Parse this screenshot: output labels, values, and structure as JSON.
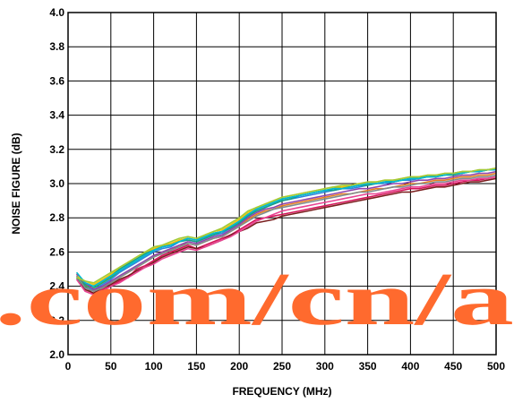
{
  "chart_data": {
    "type": "line",
    "title": "",
    "xlabel": "FREQUENCY (MHz)",
    "ylabel": "NOISE FIGURE (dB)",
    "xlim": [
      0,
      500
    ],
    "ylim": [
      2.0,
      4.0
    ],
    "grid": true,
    "x_ticks": [
      "0",
      "50",
      "100",
      "150",
      "200",
      "250",
      "300",
      "350",
      "400",
      "450",
      "500"
    ],
    "y_ticks": [
      "2.0",
      "2.2",
      "2.4",
      "2.6",
      "2.8",
      "3.0",
      "3.2",
      "3.4",
      "3.6",
      "3.8",
      "4.0"
    ],
    "x": [
      10,
      20,
      30,
      40,
      50,
      60,
      70,
      80,
      90,
      100,
      110,
      120,
      130,
      140,
      150,
      160,
      170,
      180,
      190,
      200,
      210,
      220,
      230,
      240,
      250,
      260,
      270,
      280,
      290,
      300,
      310,
      320,
      330,
      340,
      350,
      360,
      370,
      380,
      390,
      400,
      410,
      420,
      430,
      440,
      450,
      460,
      470,
      480,
      490,
      500
    ],
    "series": [
      {
        "color": "#d4145a",
        "values": [
          2.47,
          2.4,
          2.35,
          2.38,
          2.4,
          2.43,
          2.45,
          2.5,
          2.52,
          2.55,
          2.58,
          2.6,
          2.62,
          2.64,
          2.62,
          2.64,
          2.66,
          2.68,
          2.7,
          2.73,
          2.76,
          2.79,
          2.8,
          2.81,
          2.82,
          2.83,
          2.84,
          2.85,
          2.86,
          2.87,
          2.88,
          2.89,
          2.9,
          2.91,
          2.92,
          2.93,
          2.94,
          2.95,
          2.96,
          2.97,
          2.97,
          2.98,
          2.99,
          2.99,
          3.0,
          3.01,
          3.02,
          3.02,
          3.03,
          3.04
        ]
      },
      {
        "color": "#7b1f1f",
        "values": [
          2.45,
          2.38,
          2.36,
          2.39,
          2.41,
          2.44,
          2.46,
          2.49,
          2.51,
          2.54,
          2.57,
          2.59,
          2.61,
          2.63,
          2.62,
          2.63,
          2.65,
          2.67,
          2.7,
          2.72,
          2.74,
          2.77,
          2.78,
          2.79,
          2.81,
          2.82,
          2.83,
          2.84,
          2.85,
          2.86,
          2.87,
          2.88,
          2.89,
          2.9,
          2.91,
          2.92,
          2.93,
          2.94,
          2.95,
          2.95,
          2.96,
          2.97,
          2.98,
          2.98,
          2.99,
          3.0,
          3.01,
          3.01,
          3.02,
          3.03
        ]
      },
      {
        "color": "#e67e22",
        "values": [
          2.48,
          2.41,
          2.37,
          2.4,
          2.42,
          2.45,
          2.48,
          2.51,
          2.54,
          2.57,
          2.6,
          2.61,
          2.64,
          2.65,
          2.64,
          2.66,
          2.68,
          2.69,
          2.72,
          2.75,
          2.79,
          2.82,
          2.84,
          2.85,
          2.87,
          2.88,
          2.89,
          2.9,
          2.91,
          2.92,
          2.93,
          2.94,
          2.94,
          2.95,
          2.96,
          2.97,
          2.97,
          2.98,
          2.99,
          3.0,
          3.0,
          3.01,
          3.02,
          3.02,
          3.03,
          3.04,
          3.04,
          3.05,
          3.05,
          3.06
        ]
      },
      {
        "color": "#2e86de",
        "values": [
          2.46,
          2.39,
          2.38,
          2.41,
          2.44,
          2.48,
          2.51,
          2.54,
          2.57,
          2.6,
          2.62,
          2.63,
          2.66,
          2.67,
          2.66,
          2.68,
          2.7,
          2.71,
          2.74,
          2.77,
          2.81,
          2.84,
          2.86,
          2.88,
          2.9,
          2.91,
          2.92,
          2.93,
          2.94,
          2.95,
          2.96,
          2.97,
          2.97,
          2.98,
          2.99,
          3.0,
          3.0,
          3.01,
          3.02,
          3.02,
          3.03,
          3.04,
          3.04,
          3.05,
          3.06,
          3.06,
          3.07,
          3.07,
          3.08,
          3.08
        ]
      },
      {
        "color": "#27ae60",
        "values": [
          2.44,
          2.4,
          2.39,
          2.42,
          2.45,
          2.49,
          2.52,
          2.55,
          2.58,
          2.61,
          2.63,
          2.64,
          2.67,
          2.68,
          2.67,
          2.69,
          2.71,
          2.72,
          2.75,
          2.78,
          2.82,
          2.85,
          2.87,
          2.89,
          2.91,
          2.92,
          2.93,
          2.94,
          2.95,
          2.96,
          2.97,
          2.98,
          2.98,
          2.99,
          3.0,
          3.0,
          3.01,
          3.02,
          3.02,
          3.03,
          3.04,
          3.04,
          3.05,
          3.05,
          3.06,
          3.07,
          3.07,
          3.08,
          3.08,
          3.09
        ]
      },
      {
        "color": "#16a085",
        "values": [
          2.45,
          2.41,
          2.4,
          2.43,
          2.46,
          2.5,
          2.53,
          2.56,
          2.59,
          2.62,
          2.63,
          2.65,
          2.66,
          2.67,
          2.66,
          2.68,
          2.7,
          2.72,
          2.74,
          2.77,
          2.81,
          2.84,
          2.86,
          2.88,
          2.9,
          2.91,
          2.93,
          2.94,
          2.95,
          2.96,
          2.96,
          2.97,
          2.98,
          2.99,
          2.99,
          3.0,
          3.01,
          3.01,
          3.02,
          3.03,
          3.03,
          3.04,
          3.04,
          3.05,
          3.05,
          3.06,
          3.07,
          3.07,
          3.08,
          3.08
        ]
      },
      {
        "color": "#8e44ad",
        "values": [
          2.47,
          2.42,
          2.38,
          2.4,
          2.43,
          2.46,
          2.49,
          2.52,
          2.55,
          2.58,
          2.6,
          2.62,
          2.64,
          2.66,
          2.65,
          2.67,
          2.69,
          2.7,
          2.73,
          2.76,
          2.8,
          2.83,
          2.85,
          2.86,
          2.88,
          2.89,
          2.9,
          2.91,
          2.92,
          2.93,
          2.94,
          2.95,
          2.96,
          2.97,
          2.97,
          2.98,
          2.99,
          3.0,
          3.0,
          3.01,
          3.02,
          3.02,
          3.03,
          3.03,
          3.04,
          3.05,
          3.05,
          3.06,
          3.06,
          3.07
        ]
      },
      {
        "color": "#f1c40f",
        "values": [
          2.46,
          2.43,
          2.41,
          2.44,
          2.47,
          2.51,
          2.54,
          2.57,
          2.6,
          2.62,
          2.64,
          2.65,
          2.67,
          2.68,
          2.67,
          2.7,
          2.72,
          2.73,
          2.76,
          2.79,
          2.83,
          2.86,
          2.88,
          2.9,
          2.92,
          2.93,
          2.94,
          2.95,
          2.96,
          2.97,
          2.98,
          2.98,
          2.99,
          3.0,
          3.0,
          3.01,
          3.02,
          3.02,
          3.03,
          3.04,
          3.04,
          3.05,
          3.05,
          3.06,
          3.06,
          3.07,
          3.07,
          3.08,
          3.08,
          3.09
        ]
      },
      {
        "color": "#e84393",
        "values": [
          2.44,
          2.37,
          2.35,
          2.37,
          2.4,
          2.42,
          2.45,
          2.48,
          2.51,
          2.53,
          2.56,
          2.58,
          2.6,
          2.62,
          2.61,
          2.63,
          2.65,
          2.67,
          2.69,
          2.72,
          2.75,
          2.78,
          2.8,
          2.82,
          2.84,
          2.85,
          2.86,
          2.87,
          2.88,
          2.89,
          2.9,
          2.91,
          2.92,
          2.93,
          2.94,
          2.94,
          2.95,
          2.96,
          2.97,
          2.98,
          2.98,
          2.99,
          3.0,
          3.0,
          3.01,
          3.02,
          3.02,
          3.03,
          3.03,
          3.04
        ]
      },
      {
        "color": "#00b8d4",
        "values": [
          2.48,
          2.42,
          2.4,
          2.43,
          2.46,
          2.49,
          2.52,
          2.55,
          2.58,
          2.61,
          2.63,
          2.64,
          2.66,
          2.68,
          2.67,
          2.69,
          2.71,
          2.72,
          2.75,
          2.78,
          2.82,
          2.85,
          2.87,
          2.89,
          2.91,
          2.92,
          2.93,
          2.94,
          2.95,
          2.96,
          2.97,
          2.97,
          2.98,
          2.99,
          3.0,
          3.0,
          3.01,
          3.01,
          3.02,
          3.03,
          3.03,
          3.04,
          3.04,
          3.05,
          3.06,
          3.06,
          3.07,
          3.07,
          3.08,
          3.08
        ]
      },
      {
        "color": "#7f8c8d",
        "values": [
          2.46,
          2.39,
          2.37,
          2.39,
          2.42,
          2.45,
          2.48,
          2.51,
          2.54,
          2.57,
          2.59,
          2.61,
          2.63,
          2.65,
          2.64,
          2.66,
          2.68,
          2.69,
          2.72,
          2.75,
          2.78,
          2.81,
          2.83,
          2.85,
          2.86,
          2.87,
          2.88,
          2.89,
          2.9,
          2.91,
          2.92,
          2.93,
          2.94,
          2.95,
          2.95,
          2.96,
          2.97,
          2.98,
          2.98,
          2.99,
          3.0,
          3.0,
          3.01,
          3.01,
          3.02,
          3.03,
          3.03,
          3.04,
          3.04,
          3.05
        ]
      },
      {
        "color": "#a3cb38",
        "values": [
          2.45,
          2.43,
          2.42,
          2.45,
          2.48,
          2.51,
          2.54,
          2.57,
          2.6,
          2.63,
          2.64,
          2.66,
          2.68,
          2.69,
          2.68,
          2.7,
          2.72,
          2.74,
          2.77,
          2.8,
          2.84,
          2.86,
          2.88,
          2.9,
          2.92,
          2.93,
          2.94,
          2.95,
          2.96,
          2.97,
          2.98,
          2.99,
          2.99,
          3.0,
          3.01,
          3.01,
          3.02,
          3.02,
          3.03,
          3.04,
          3.04,
          3.05,
          3.05,
          3.06,
          3.06,
          3.07,
          3.07,
          3.08,
          3.08,
          3.09
        ]
      }
    ],
    "watermark": ".com/cn/a"
  }
}
